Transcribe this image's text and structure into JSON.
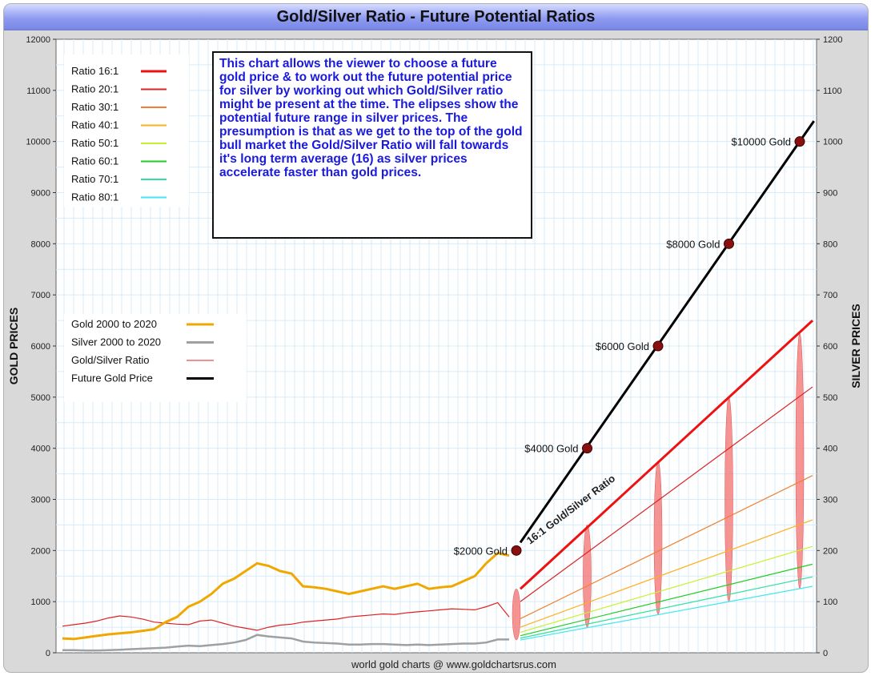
{
  "title": "Gold/Silver Ratio - Future Potential Ratios",
  "footer": "world gold charts @ www.goldchartsrus.com",
  "chart_data": {
    "type": "line",
    "title": "Gold/Silver Ratio - Future Potential Ratios",
    "ylabel_left": "GOLD PRICES",
    "ylabel_right": "SILVER PRICES",
    "ylim_left": [
      0,
      12000
    ],
    "ylim_right": [
      0,
      1200
    ],
    "left_ticks": [
      "0",
      "1000",
      "2000",
      "3000",
      "4000",
      "5000",
      "6000",
      "7000",
      "8000",
      "9000",
      "10000",
      "11000",
      "12000"
    ],
    "right_ticks": [
      "0",
      "100",
      "200",
      "300",
      "400",
      "500",
      "600",
      "700",
      "800",
      "900",
      "1000",
      "1100",
      "1200"
    ],
    "grid": true,
    "legend_ratios": [
      {
        "label": "Ratio 16:1",
        "color": "#ee1111",
        "width": 3
      },
      {
        "label": "Ratio 20:1",
        "color": "#dd2222",
        "width": 2
      },
      {
        "label": "Ratio 30:1",
        "color": "#f08030",
        "width": 2
      },
      {
        "label": "Ratio 40:1",
        "color": "#ffb020",
        "width": 2
      },
      {
        "label": "Ratio 50:1",
        "color": "#c8f030",
        "width": 2
      },
      {
        "label": "Ratio 60:1",
        "color": "#22cc22",
        "width": 2
      },
      {
        "label": "Ratio 70:1",
        "color": "#30e0a0",
        "width": 2
      },
      {
        "label": "Ratio 80:1",
        "color": "#40e8f0",
        "width": 2
      }
    ],
    "legend_series": [
      {
        "label": "Gold 2000 to 2020",
        "color": "#f0a800",
        "width": 3
      },
      {
        "label": "Silver 2000 to 2020",
        "color": "#a0a0a0",
        "width": 3
      },
      {
        "label": "Gold/Silver Ratio",
        "color": "#e02020",
        "width": 1
      },
      {
        "label": "Future Gold Price",
        "color": "#000000",
        "width": 3
      }
    ],
    "annotation": "This chart allows the viewer to choose a future gold price & to work out the future potential price for silver by working out which Gold/Silver ratio might be present at the time. The elipses show the potential future range in silver prices. The presumption is that as we get to the top of the gold bull market the Gold/Silver Ratio will fall towards it's long term average (16) as silver prices accelerate faster than gold prices.",
    "ratio_line_label": "16:1 Gold/Silver Ratio",
    "future_gold_points": [
      {
        "label": "$2000 Gold",
        "gold": 2000
      },
      {
        "label": "$4000 Gold",
        "gold": 4000
      },
      {
        "label": "$6000 Gold",
        "gold": 6000
      },
      {
        "label": "$8000 Gold",
        "gold": 8000
      },
      {
        "label": "$10000 Gold",
        "gold": 10000
      }
    ],
    "future_gold_line_range": [
      2000,
      10400
    ],
    "ratio_silver_end": {
      "16": 650,
      "20": 520,
      "30": 347,
      "40": 260,
      "50": 208,
      "60": 173,
      "70": 149,
      "80": 130
    },
    "ellipses_silver_range": [
      {
        "gold": 2000,
        "silver_low": 25,
        "silver_high": 125
      },
      {
        "gold": 4000,
        "silver_low": 50,
        "silver_high": 250
      },
      {
        "gold": 6000,
        "silver_low": 75,
        "silver_high": 375
      },
      {
        "gold": 8000,
        "silver_low": 100,
        "silver_high": 500
      },
      {
        "gold": 10000,
        "silver_low": 125,
        "silver_high": 625
      }
    ],
    "history": {
      "gold": [
        280,
        270,
        300,
        330,
        360,
        380,
        400,
        430,
        460,
        600,
        700,
        900,
        1000,
        1150,
        1350,
        1450,
        1600,
        1750,
        1700,
        1600,
        1550,
        1300,
        1280,
        1250,
        1200,
        1150,
        1200,
        1250,
        1300,
        1250,
        1300,
        1350,
        1250,
        1280,
        1300,
        1400,
        1500,
        1750,
        1950,
        1900
      ],
      "silver": [
        5,
        5,
        4.5,
        4.5,
        5,
        6,
        7,
        8,
        9,
        10,
        12,
        14,
        13,
        15,
        17,
        20,
        25,
        35,
        32,
        30,
        28,
        22,
        20,
        19,
        18,
        16,
        16,
        17,
        17,
        16,
        15,
        16,
        15,
        16,
        17,
        18,
        18,
        20,
        26,
        26
      ],
      "ratio": [
        52,
        55,
        58,
        62,
        68,
        72,
        70,
        66,
        60,
        58,
        56,
        55,
        62,
        64,
        58,
        52,
        48,
        44,
        50,
        54,
        56,
        60,
        62,
        64,
        66,
        70,
        72,
        74,
        76,
        75,
        78,
        80,
        82,
        84,
        86,
        85,
        84,
        90,
        98,
        70
      ]
    }
  }
}
